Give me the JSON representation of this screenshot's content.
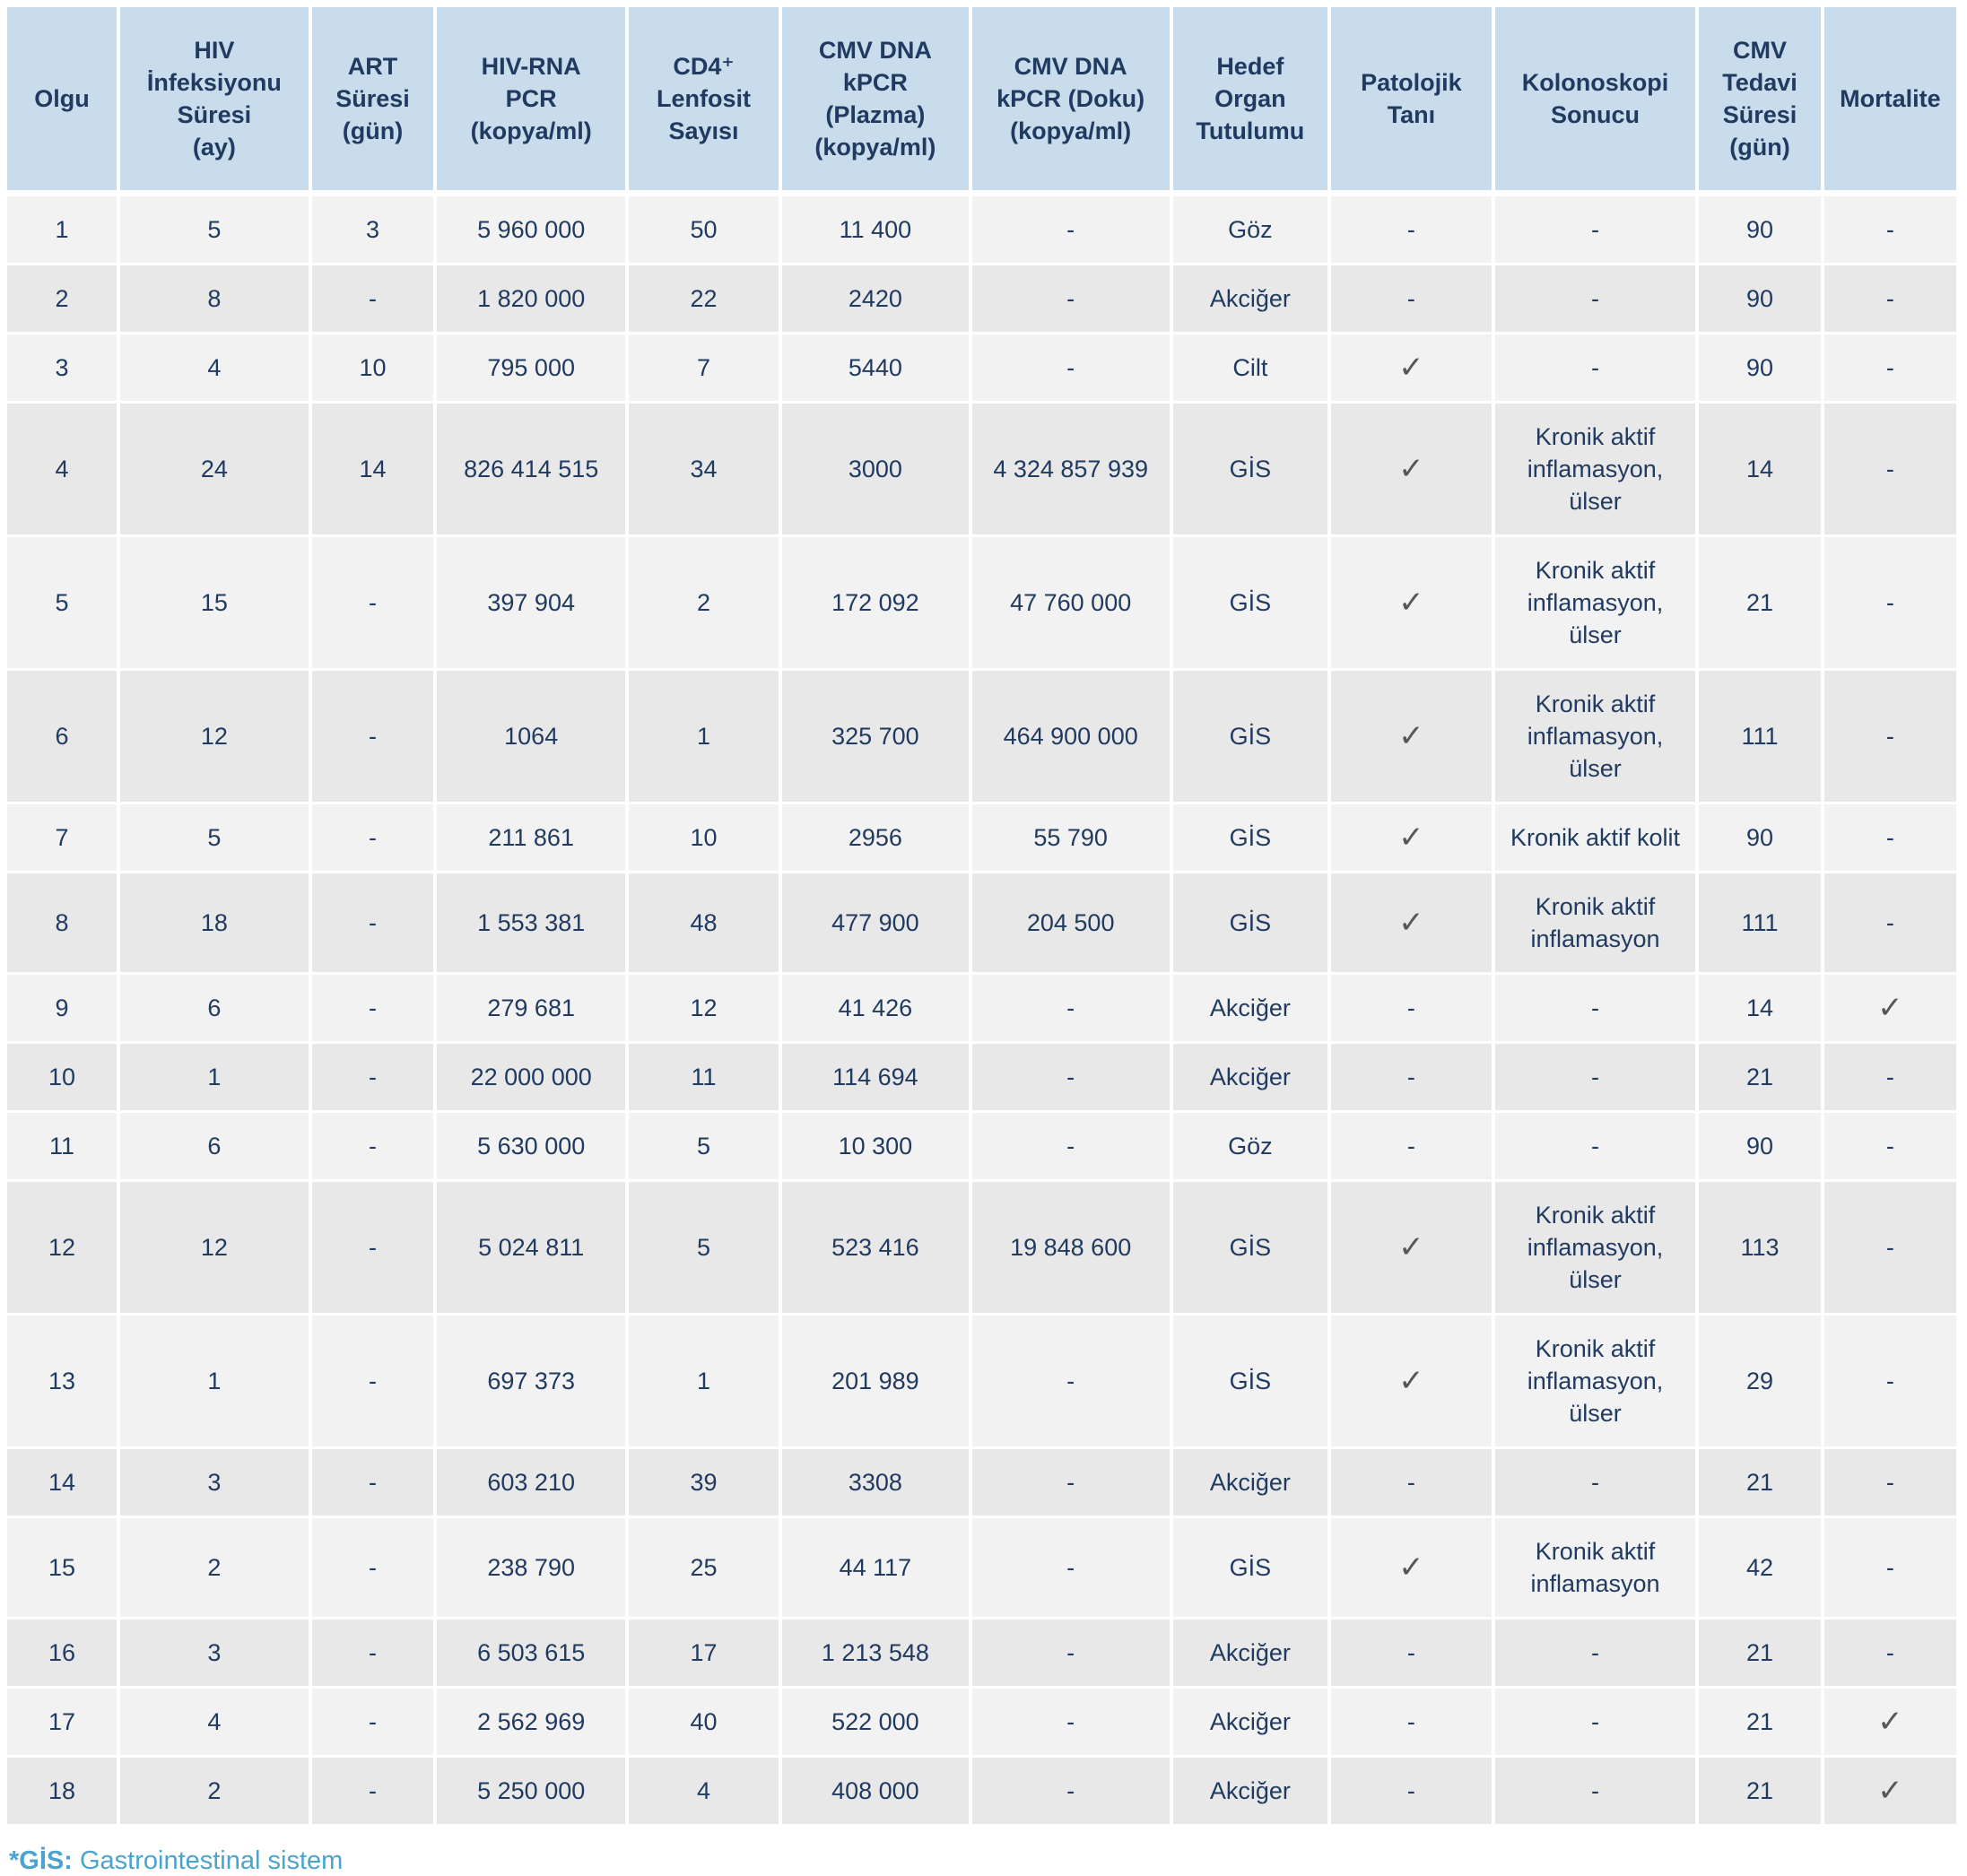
{
  "chart_data": {
    "type": "table",
    "columns": [
      "Olgu",
      "HIV\nİnfeksiyonu\nSüresi\n(ay)",
      "ART\nSüresi\n(gün)",
      "HIV-RNA\nPCR\n(kopya/ml)",
      "CD4⁺\nLenfosit\nSayısı",
      "CMV DNA\nkPCR\n(Plazma)\n(kopya/ml)",
      "CMV DNA\nkPCR (Doku)\n(kopya/ml)",
      "Hedef\nOrgan\nTutulumu",
      "Patolojik\nTanı",
      "Kolonoskopi\nSonucu",
      "CMV\nTedavi\nSüresi\n(gün)",
      "Mortalite"
    ],
    "rows": [
      [
        "1",
        "5",
        "3",
        "5 960 000",
        "50",
        "11 400",
        "-",
        "Göz",
        "-",
        "-",
        "90",
        "-"
      ],
      [
        "2",
        "8",
        "-",
        "1 820 000",
        "22",
        "2420",
        "-",
        "Akciğer",
        "-",
        "-",
        "90",
        "-"
      ],
      [
        "3",
        "4",
        "10",
        "795 000",
        "7",
        "5440",
        "-",
        "Cilt",
        "✓",
        "-",
        "90",
        "-"
      ],
      [
        "4",
        "24",
        "14",
        "826 414 515",
        "34",
        "3000",
        "4 324 857 939",
        "GİS",
        "✓",
        "Kronik aktif inflamasyon, ülser",
        "14",
        "-"
      ],
      [
        "5",
        "15",
        "-",
        "397 904",
        "2",
        "172 092",
        "47 760 000",
        "GİS",
        "✓",
        "Kronik aktif inflamasyon, ülser",
        "21",
        "-"
      ],
      [
        "6",
        "12",
        "-",
        "1064",
        "1",
        "325 700",
        "464 900 000",
        "GİS",
        "✓",
        "Kronik aktif inflamasyon, ülser",
        "111",
        "-"
      ],
      [
        "7",
        "5",
        "-",
        "211 861",
        "10",
        "2956",
        "55 790",
        "GİS",
        "✓",
        "Kronik aktif kolit",
        "90",
        "-"
      ],
      [
        "8",
        "18",
        "-",
        "1 553 381",
        "48",
        "477 900",
        "204 500",
        "GİS",
        "✓",
        "Kronik aktif inflamasyon",
        "111",
        "-"
      ],
      [
        "9",
        "6",
        "-",
        "279 681",
        "12",
        "41 426",
        "-",
        "Akciğer",
        "-",
        "-",
        "14",
        "✓"
      ],
      [
        "10",
        "1",
        "-",
        "22 000 000",
        "11",
        "114 694",
        "-",
        "Akciğer",
        "-",
        "-",
        "21",
        "-"
      ],
      [
        "11",
        "6",
        "-",
        "5 630 000",
        "5",
        "10 300",
        "-",
        "Göz",
        "-",
        "-",
        "90",
        "-"
      ],
      [
        "12",
        "12",
        "-",
        "5 024 811",
        "5",
        "523 416",
        "19 848 600",
        "GİS",
        "✓",
        "Kronik aktif inflamasyon, ülser",
        "113",
        "-"
      ],
      [
        "13",
        "1",
        "-",
        "697 373",
        "1",
        "201 989",
        "-",
        "GİS",
        "✓",
        "Kronik aktif inflamasyon, ülser",
        "29",
        "-"
      ],
      [
        "14",
        "3",
        "-",
        "603 210",
        "39",
        "3308",
        "-",
        "Akciğer",
        "-",
        "-",
        "21",
        "-"
      ],
      [
        "15",
        "2",
        "-",
        "238 790",
        "25",
        "44 117",
        "-",
        "GİS",
        "✓",
        "Kronik aktif inflamasyon",
        "42",
        "-"
      ],
      [
        "16",
        "3",
        "-",
        "6 503 615",
        "17",
        "1 213 548",
        "-",
        "Akciğer",
        "-",
        "-",
        "21",
        "-"
      ],
      [
        "17",
        "4",
        "-",
        "2 562 969",
        "40",
        "522 000",
        "-",
        "Akciğer",
        "-",
        "-",
        "21",
        "✓"
      ],
      [
        "18",
        "2",
        "-",
        "5 250 000",
        "4",
        "408 000",
        "-",
        "Akciğer",
        "-",
        "-",
        "21",
        "✓"
      ]
    ],
    "footnote_label": "*GİS:",
    "footnote_text": "Gastrointestinal sistem",
    "layout": {
      "grid": "striped-rows",
      "legend_position": "none"
    }
  },
  "colors": {
    "header_bg": "#c8dcec",
    "row_light": "#f2f2f2",
    "row_dark": "#e8e8e8",
    "text": "#203a60",
    "checkmark": "#575757",
    "footnote": "#4ba4ce"
  },
  "icons": {
    "checkmark": "✓",
    "empty": "-"
  }
}
